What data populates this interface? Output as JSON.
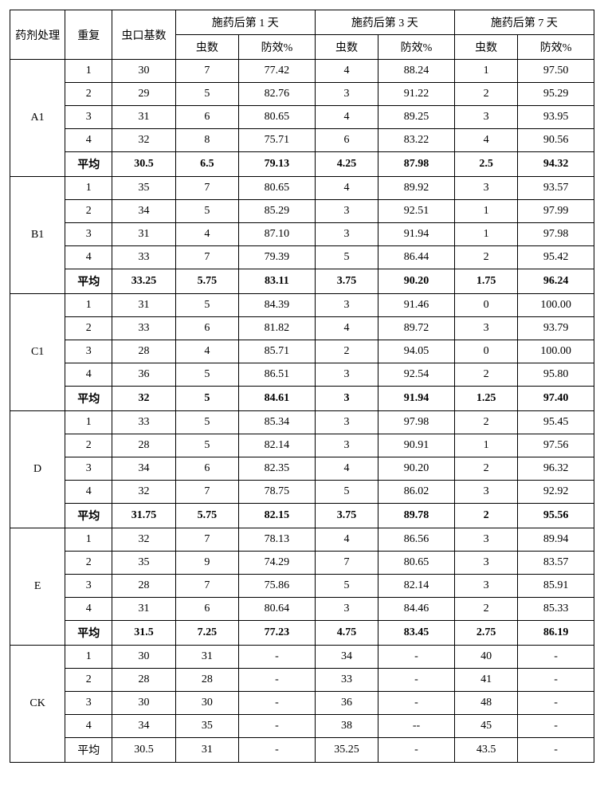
{
  "headers": {
    "treatment": "药剂处理",
    "repetition": "重复",
    "base": "虫口基数",
    "day1": "施药后第 1 天",
    "day3": "施药后第 3 天",
    "day7": "施药后第 7 天",
    "count": "虫数",
    "efficacy": "防效%"
  },
  "groups": [
    {
      "name": "A1",
      "rows": [
        {
          "rep": "1",
          "base": "30",
          "d1c": "7",
          "d1e": "77.42",
          "d3c": "4",
          "d3e": "88.24",
          "d7c": "1",
          "d7e": "97.50",
          "bold": false
        },
        {
          "rep": "2",
          "base": "29",
          "d1c": "5",
          "d1e": "82.76",
          "d3c": "3",
          "d3e": "91.22",
          "d7c": "2",
          "d7e": "95.29",
          "bold": false
        },
        {
          "rep": "3",
          "base": "31",
          "d1c": "6",
          "d1e": "80.65",
          "d3c": "4",
          "d3e": "89.25",
          "d7c": "3",
          "d7e": "93.95",
          "bold": false
        },
        {
          "rep": "4",
          "base": "32",
          "d1c": "8",
          "d1e": "75.71",
          "d3c": "6",
          "d3e": "83.22",
          "d7c": "4",
          "d7e": "90.56",
          "bold": false
        },
        {
          "rep": "平均",
          "base": "30.5",
          "d1c": "6.5",
          "d1e": "79.13",
          "d3c": "4.25",
          "d3e": "87.98",
          "d7c": "2.5",
          "d7e": "94.32",
          "bold": true
        }
      ]
    },
    {
      "name": "B1",
      "rows": [
        {
          "rep": "1",
          "base": "35",
          "d1c": "7",
          "d1e": "80.65",
          "d3c": "4",
          "d3e": "89.92",
          "d7c": "3",
          "d7e": "93.57",
          "bold": false
        },
        {
          "rep": "2",
          "base": "34",
          "d1c": "5",
          "d1e": "85.29",
          "d3c": "3",
          "d3e": "92.51",
          "d7c": "1",
          "d7e": "97.99",
          "bold": false
        },
        {
          "rep": "3",
          "base": "31",
          "d1c": "4",
          "d1e": "87.10",
          "d3c": "3",
          "d3e": "91.94",
          "d7c": "1",
          "d7e": "97.98",
          "bold": false
        },
        {
          "rep": "4",
          "base": "33",
          "d1c": "7",
          "d1e": "79.39",
          "d3c": "5",
          "d3e": "86.44",
          "d7c": "2",
          "d7e": "95.42",
          "bold": false
        },
        {
          "rep": "平均",
          "base": "33.25",
          "d1c": "5.75",
          "d1e": "83.11",
          "d3c": "3.75",
          "d3e": "90.20",
          "d7c": "1.75",
          "d7e": "96.24",
          "bold": true
        }
      ]
    },
    {
      "name": "C1",
      "rows": [
        {
          "rep": "1",
          "base": "31",
          "d1c": "5",
          "d1e": "84.39",
          "d3c": "3",
          "d3e": "91.46",
          "d7c": "0",
          "d7e": "100.00",
          "bold": false
        },
        {
          "rep": "2",
          "base": "33",
          "d1c": "6",
          "d1e": "81.82",
          "d3c": "4",
          "d3e": "89.72",
          "d7c": "3",
          "d7e": "93.79",
          "bold": false
        },
        {
          "rep": "3",
          "base": "28",
          "d1c": "4",
          "d1e": "85.71",
          "d3c": "2",
          "d3e": "94.05",
          "d7c": "0",
          "d7e": "100.00",
          "bold": false
        },
        {
          "rep": "4",
          "base": "36",
          "d1c": "5",
          "d1e": "86.51",
          "d3c": "3",
          "d3e": "92.54",
          "d7c": "2",
          "d7e": "95.80",
          "bold": false
        },
        {
          "rep": "平均",
          "base": "32",
          "d1c": "5",
          "d1e": "84.61",
          "d3c": "3",
          "d3e": "91.94",
          "d7c": "1.25",
          "d7e": "97.40",
          "bold": true
        }
      ]
    },
    {
      "name": "D",
      "rows": [
        {
          "rep": "1",
          "base": "33",
          "d1c": "5",
          "d1e": "85.34",
          "d3c": "3",
          "d3e": "97.98",
          "d7c": "2",
          "d7e": "95.45",
          "bold": false
        },
        {
          "rep": "2",
          "base": "28",
          "d1c": "5",
          "d1e": "82.14",
          "d3c": "3",
          "d3e": "90.91",
          "d7c": "1",
          "d7e": "97.56",
          "bold": false
        },
        {
          "rep": "3",
          "base": "34",
          "d1c": "6",
          "d1e": "82.35",
          "d3c": "4",
          "d3e": "90.20",
          "d7c": "2",
          "d7e": "96.32",
          "bold": false
        },
        {
          "rep": "4",
          "base": "32",
          "d1c": "7",
          "d1e": "78.75",
          "d3c": "5",
          "d3e": "86.02",
          "d7c": "3",
          "d7e": "92.92",
          "bold": false
        },
        {
          "rep": "平均",
          "base": "31.75",
          "d1c": "5.75",
          "d1e": "82.15",
          "d3c": "3.75",
          "d3e": "89.78",
          "d7c": "2",
          "d7e": "95.56",
          "bold": true
        }
      ]
    },
    {
      "name": "E",
      "rows": [
        {
          "rep": "1",
          "base": "32",
          "d1c": "7",
          "d1e": "78.13",
          "d3c": "4",
          "d3e": "86.56",
          "d7c": "3",
          "d7e": "89.94",
          "bold": false
        },
        {
          "rep": "2",
          "base": "35",
          "d1c": "9",
          "d1e": "74.29",
          "d3c": "7",
          "d3e": "80.65",
          "d7c": "3",
          "d7e": "83.57",
          "bold": false
        },
        {
          "rep": "3",
          "base": "28",
          "d1c": "7",
          "d1e": "75.86",
          "d3c": "5",
          "d3e": "82.14",
          "d7c": "3",
          "d7e": "85.91",
          "bold": false
        },
        {
          "rep": "4",
          "base": "31",
          "d1c": "6",
          "d1e": "80.64",
          "d3c": "3",
          "d3e": "84.46",
          "d7c": "2",
          "d7e": "85.33",
          "bold": false
        },
        {
          "rep": "平均",
          "base": "31.5",
          "d1c": "7.25",
          "d1e": "77.23",
          "d3c": "4.75",
          "d3e": "83.45",
          "d7c": "2.75",
          "d7e": "86.19",
          "bold": true
        }
      ]
    },
    {
      "name": "CK",
      "rows": [
        {
          "rep": "1",
          "base": "30",
          "d1c": "31",
          "d1e": "-",
          "d3c": "34",
          "d3e": "-",
          "d7c": "40",
          "d7e": "-",
          "bold": false
        },
        {
          "rep": "2",
          "base": "28",
          "d1c": "28",
          "d1e": "-",
          "d3c": "33",
          "d3e": "-",
          "d7c": "41",
          "d7e": "-",
          "bold": false
        },
        {
          "rep": "3",
          "base": "30",
          "d1c": "30",
          "d1e": "-",
          "d3c": "36",
          "d3e": "-",
          "d7c": "48",
          "d7e": "-",
          "bold": false
        },
        {
          "rep": "4",
          "base": "34",
          "d1c": "35",
          "d1e": "-",
          "d3c": "38",
          "d3e": "--",
          "d7c": "45",
          "d7e": "-",
          "bold": false
        },
        {
          "rep": "平均",
          "base": "30.5",
          "d1c": "31",
          "d1e": "-",
          "d3c": "35.25",
          "d3e": "-",
          "d7c": "43.5",
          "d7e": "-",
          "bold": false
        }
      ]
    }
  ]
}
